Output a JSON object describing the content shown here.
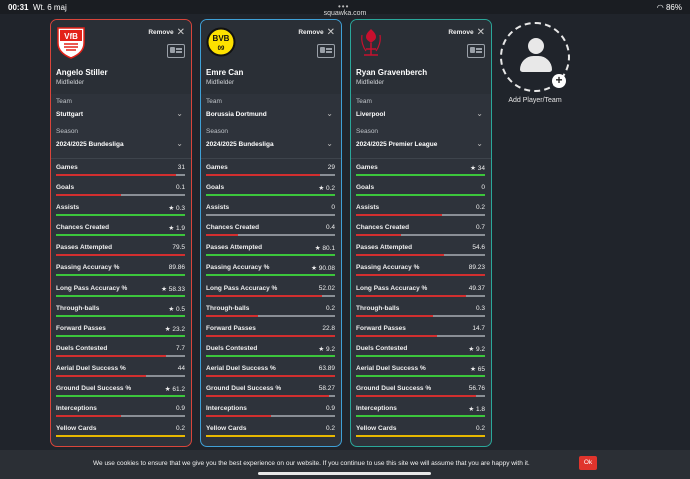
{
  "status": {
    "time": "00:31",
    "date": "Wt. 6 maj",
    "battery": "86%",
    "url": "squawka.com"
  },
  "remove_label": "Remove",
  "add_label": "Add Player/Team",
  "cookie": {
    "message": "We use cookies to ensure that we give you the best experience on our website. If you continue to use this site we will assume that you are happy with it.",
    "ok": "Ok"
  },
  "players": [
    {
      "name": "Angelo Stiller",
      "position": "Midfielder",
      "team_label": "Team",
      "team": "Stuttgart",
      "season_label": "Season",
      "season": "2024/2025 Bundesliga",
      "crest": "vfb-stuttgart-crest",
      "stats": [
        {
          "label": "Games",
          "value": "31",
          "star": false,
          "fill": 0.93,
          "color": "#d32f2f"
        },
        {
          "label": "Goals",
          "value": "0.1",
          "star": false,
          "fill": 0.5,
          "color": "#d32f2f"
        },
        {
          "label": "Assists",
          "value": "0.3",
          "star": true,
          "fill": 1.0,
          "color": "#3cc63c"
        },
        {
          "label": "Chances Created",
          "value": "1.9",
          "star": true,
          "fill": 1.0,
          "color": "#3cc63c"
        },
        {
          "label": "Passes Attempted",
          "value": "79.5",
          "star": false,
          "fill": 1.0,
          "color": "#d32f2f"
        },
        {
          "label": "Passing Accuracy %",
          "value": "89.86",
          "star": false,
          "fill": 1.0,
          "color": "#3cc63c"
        },
        {
          "label": "Long Pass Accuracy %",
          "value": "58.33",
          "star": true,
          "fill": 1.0,
          "color": "#3cc63c"
        },
        {
          "label": "Through-balls",
          "value": "0.5",
          "star": true,
          "fill": 1.0,
          "color": "#3cc63c"
        },
        {
          "label": "Forward Passes",
          "value": "23.2",
          "star": true,
          "fill": 1.0,
          "color": "#3cc63c"
        },
        {
          "label": "Duels Contested",
          "value": "7.7",
          "star": false,
          "fill": 0.85,
          "color": "#d32f2f"
        },
        {
          "label": "Aerial Duel Success %",
          "value": "44",
          "star": false,
          "fill": 0.7,
          "color": "#d32f2f"
        },
        {
          "label": "Ground Duel Success %",
          "value": "61.2",
          "star": true,
          "fill": 1.0,
          "color": "#3cc63c"
        },
        {
          "label": "Interceptions",
          "value": "0.9",
          "star": false,
          "fill": 0.5,
          "color": "#d32f2f"
        },
        {
          "label": "Yellow Cards",
          "value": "0.2",
          "star": false,
          "fill": 1.0,
          "color": "#e6b800"
        }
      ]
    },
    {
      "name": "Emre Can",
      "position": "Midfielder",
      "team_label": "Team",
      "team": "Borussia Dortmund",
      "season_label": "Season",
      "season": "2024/2025 Bundesliga",
      "crest": "bvb-crest",
      "stats": [
        {
          "label": "Games",
          "value": "29",
          "star": false,
          "fill": 0.88,
          "color": "#d32f2f"
        },
        {
          "label": "Goals",
          "value": "0.2",
          "star": true,
          "fill": 1.0,
          "color": "#3cc63c"
        },
        {
          "label": "Assists",
          "value": "0",
          "star": false,
          "fill": 0.0,
          "color": "#d32f2f"
        },
        {
          "label": "Chances Created",
          "value": "0.4",
          "star": false,
          "fill": 0.25,
          "color": "#d32f2f"
        },
        {
          "label": "Passes Attempted",
          "value": "80.1",
          "star": true,
          "fill": 1.0,
          "color": "#3cc63c"
        },
        {
          "label": "Passing Accuracy %",
          "value": "90.08",
          "star": true,
          "fill": 1.0,
          "color": "#3cc63c"
        },
        {
          "label": "Long Pass Accuracy %",
          "value": "52.02",
          "star": false,
          "fill": 0.9,
          "color": "#d32f2f"
        },
        {
          "label": "Through-balls",
          "value": "0.2",
          "star": false,
          "fill": 0.4,
          "color": "#d32f2f"
        },
        {
          "label": "Forward Passes",
          "value": "22.8",
          "star": false,
          "fill": 1.0,
          "color": "#d32f2f"
        },
        {
          "label": "Duels Contested",
          "value": "9.2",
          "star": true,
          "fill": 1.0,
          "color": "#3cc63c"
        },
        {
          "label": "Aerial Duel Success %",
          "value": "63.89",
          "star": false,
          "fill": 1.0,
          "color": "#d32f2f"
        },
        {
          "label": "Ground Duel Success %",
          "value": "58.27",
          "star": false,
          "fill": 0.95,
          "color": "#d32f2f"
        },
        {
          "label": "Interceptions",
          "value": "0.9",
          "star": false,
          "fill": 0.5,
          "color": "#d32f2f"
        },
        {
          "label": "Yellow Cards",
          "value": "0.2",
          "star": false,
          "fill": 1.0,
          "color": "#e6b800"
        }
      ]
    },
    {
      "name": "Ryan Gravenberch",
      "position": "Midfielder",
      "team_label": "Team",
      "team": "Liverpool",
      "season_label": "Season",
      "season": "2024/2025 Premier League",
      "crest": "liverpool-crest",
      "stats": [
        {
          "label": "Games",
          "value": "34",
          "star": true,
          "fill": 1.0,
          "color": "#3cc63c"
        },
        {
          "label": "Goals",
          "value": "0",
          "star": false,
          "fill": 1.0,
          "color": "#3cc63c"
        },
        {
          "label": "Assists",
          "value": "0.2",
          "star": false,
          "fill": 0.67,
          "color": "#d32f2f"
        },
        {
          "label": "Chances Created",
          "value": "0.7",
          "star": false,
          "fill": 0.35,
          "color": "#d32f2f"
        },
        {
          "label": "Passes Attempted",
          "value": "54.6",
          "star": false,
          "fill": 0.68,
          "color": "#d32f2f"
        },
        {
          "label": "Passing Accuracy %",
          "value": "89.23",
          "star": false,
          "fill": 1.0,
          "color": "#d32f2f"
        },
        {
          "label": "Long Pass Accuracy %",
          "value": "49.37",
          "star": false,
          "fill": 0.85,
          "color": "#d32f2f"
        },
        {
          "label": "Through-balls",
          "value": "0.3",
          "star": false,
          "fill": 0.6,
          "color": "#d32f2f"
        },
        {
          "label": "Forward Passes",
          "value": "14.7",
          "star": false,
          "fill": 0.63,
          "color": "#d32f2f"
        },
        {
          "label": "Duels Contested",
          "value": "9.2",
          "star": true,
          "fill": 1.0,
          "color": "#3cc63c"
        },
        {
          "label": "Aerial Duel Success %",
          "value": "65",
          "star": true,
          "fill": 1.0,
          "color": "#3cc63c"
        },
        {
          "label": "Ground Duel Success %",
          "value": "56.76",
          "star": false,
          "fill": 0.93,
          "color": "#d32f2f"
        },
        {
          "label": "Interceptions",
          "value": "1.8",
          "star": true,
          "fill": 1.0,
          "color": "#3cc63c"
        },
        {
          "label": "Yellow Cards",
          "value": "0.2",
          "star": false,
          "fill": 1.0,
          "color": "#e6b800"
        }
      ]
    }
  ]
}
